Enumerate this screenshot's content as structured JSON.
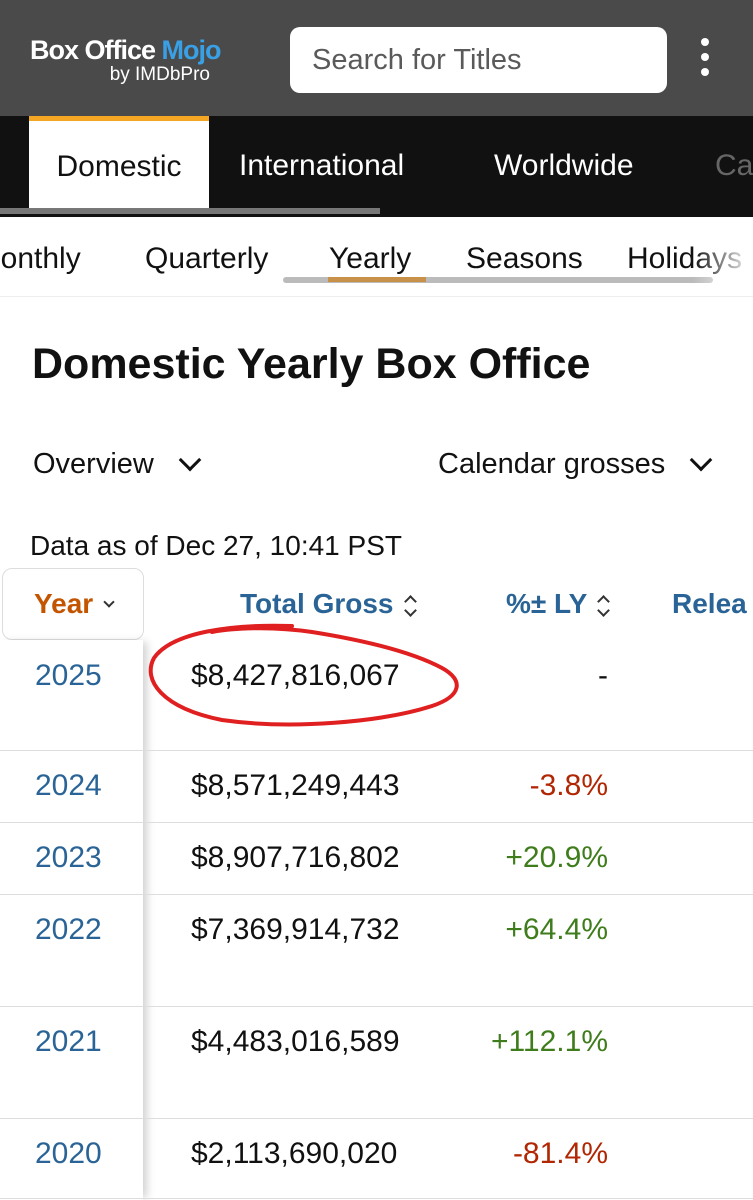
{
  "header": {
    "logo_line1": "Box Office",
    "logo_mojo": "Mojo",
    "logo_line2": "by IMDbPro",
    "search_placeholder": "Search for Titles",
    "menu_icon": "kebab-menu-icon"
  },
  "primary_tabs": [
    {
      "label": "Domestic",
      "active": true
    },
    {
      "label": "International",
      "active": false
    },
    {
      "label": "Worldwide",
      "active": false
    },
    {
      "label": "Ca",
      "active": false
    }
  ],
  "secondary_tabs": [
    {
      "label": "lonthly",
      "active": false
    },
    {
      "label": "Quarterly",
      "active": false
    },
    {
      "label": "Yearly",
      "active": true
    },
    {
      "label": "Seasons",
      "active": false
    },
    {
      "label": "Holidays",
      "active": false
    }
  ],
  "page_title": "Domestic Yearly Box Office",
  "dropdowns": {
    "view": "Overview",
    "grosses": "Calendar grosses"
  },
  "data_asof": "Data as of Dec 27, 10:41 PST",
  "table": {
    "headers": {
      "year": "Year",
      "total_gross": "Total Gross",
      "pct_ly": "%± LY",
      "releases": "Relea"
    },
    "rows": [
      {
        "year": "2025",
        "gross": "$8,427,816,067",
        "pct": "-",
        "trend": "none"
      },
      {
        "year": "2024",
        "gross": "$8,571,249,443",
        "pct": "-3.8%",
        "trend": "neg"
      },
      {
        "year": "2023",
        "gross": "$8,907,716,802",
        "pct": "+20.9%",
        "trend": "pos"
      },
      {
        "year": "2022",
        "gross": "$7,369,914,732",
        "pct": "+64.4%",
        "trend": "pos"
      },
      {
        "year": "2021",
        "gross": "$4,483,016,589",
        "pct": "+112.1%",
        "trend": "pos"
      },
      {
        "year": "2020",
        "gross": "$2,113,690,020",
        "pct": "-81.4%",
        "trend": "neg"
      }
    ]
  },
  "colors": {
    "header_bg": "#4a4a4a",
    "tab_bg": "#111111",
    "active_accent": "#f5a623",
    "link_blue": "#2a6496",
    "year_orange": "#c45500",
    "negative": "#b12704",
    "positive": "#3f7d1c",
    "annotation_red": "#e02020"
  }
}
